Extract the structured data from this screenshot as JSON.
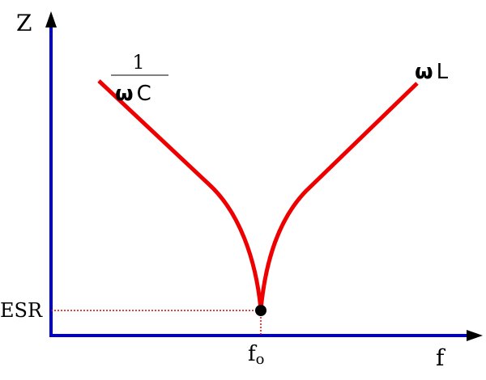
{
  "axes": {
    "y_label": "Z",
    "x_label": "f"
  },
  "annotations": {
    "esr": "ESR",
    "resonance": {
      "base": "f",
      "sub": "o"
    },
    "capacitive": {
      "numerator": "1",
      "omega": "ω",
      "symbol": "C"
    },
    "inductive": {
      "omega": "ω",
      "symbol": "L"
    }
  }
}
